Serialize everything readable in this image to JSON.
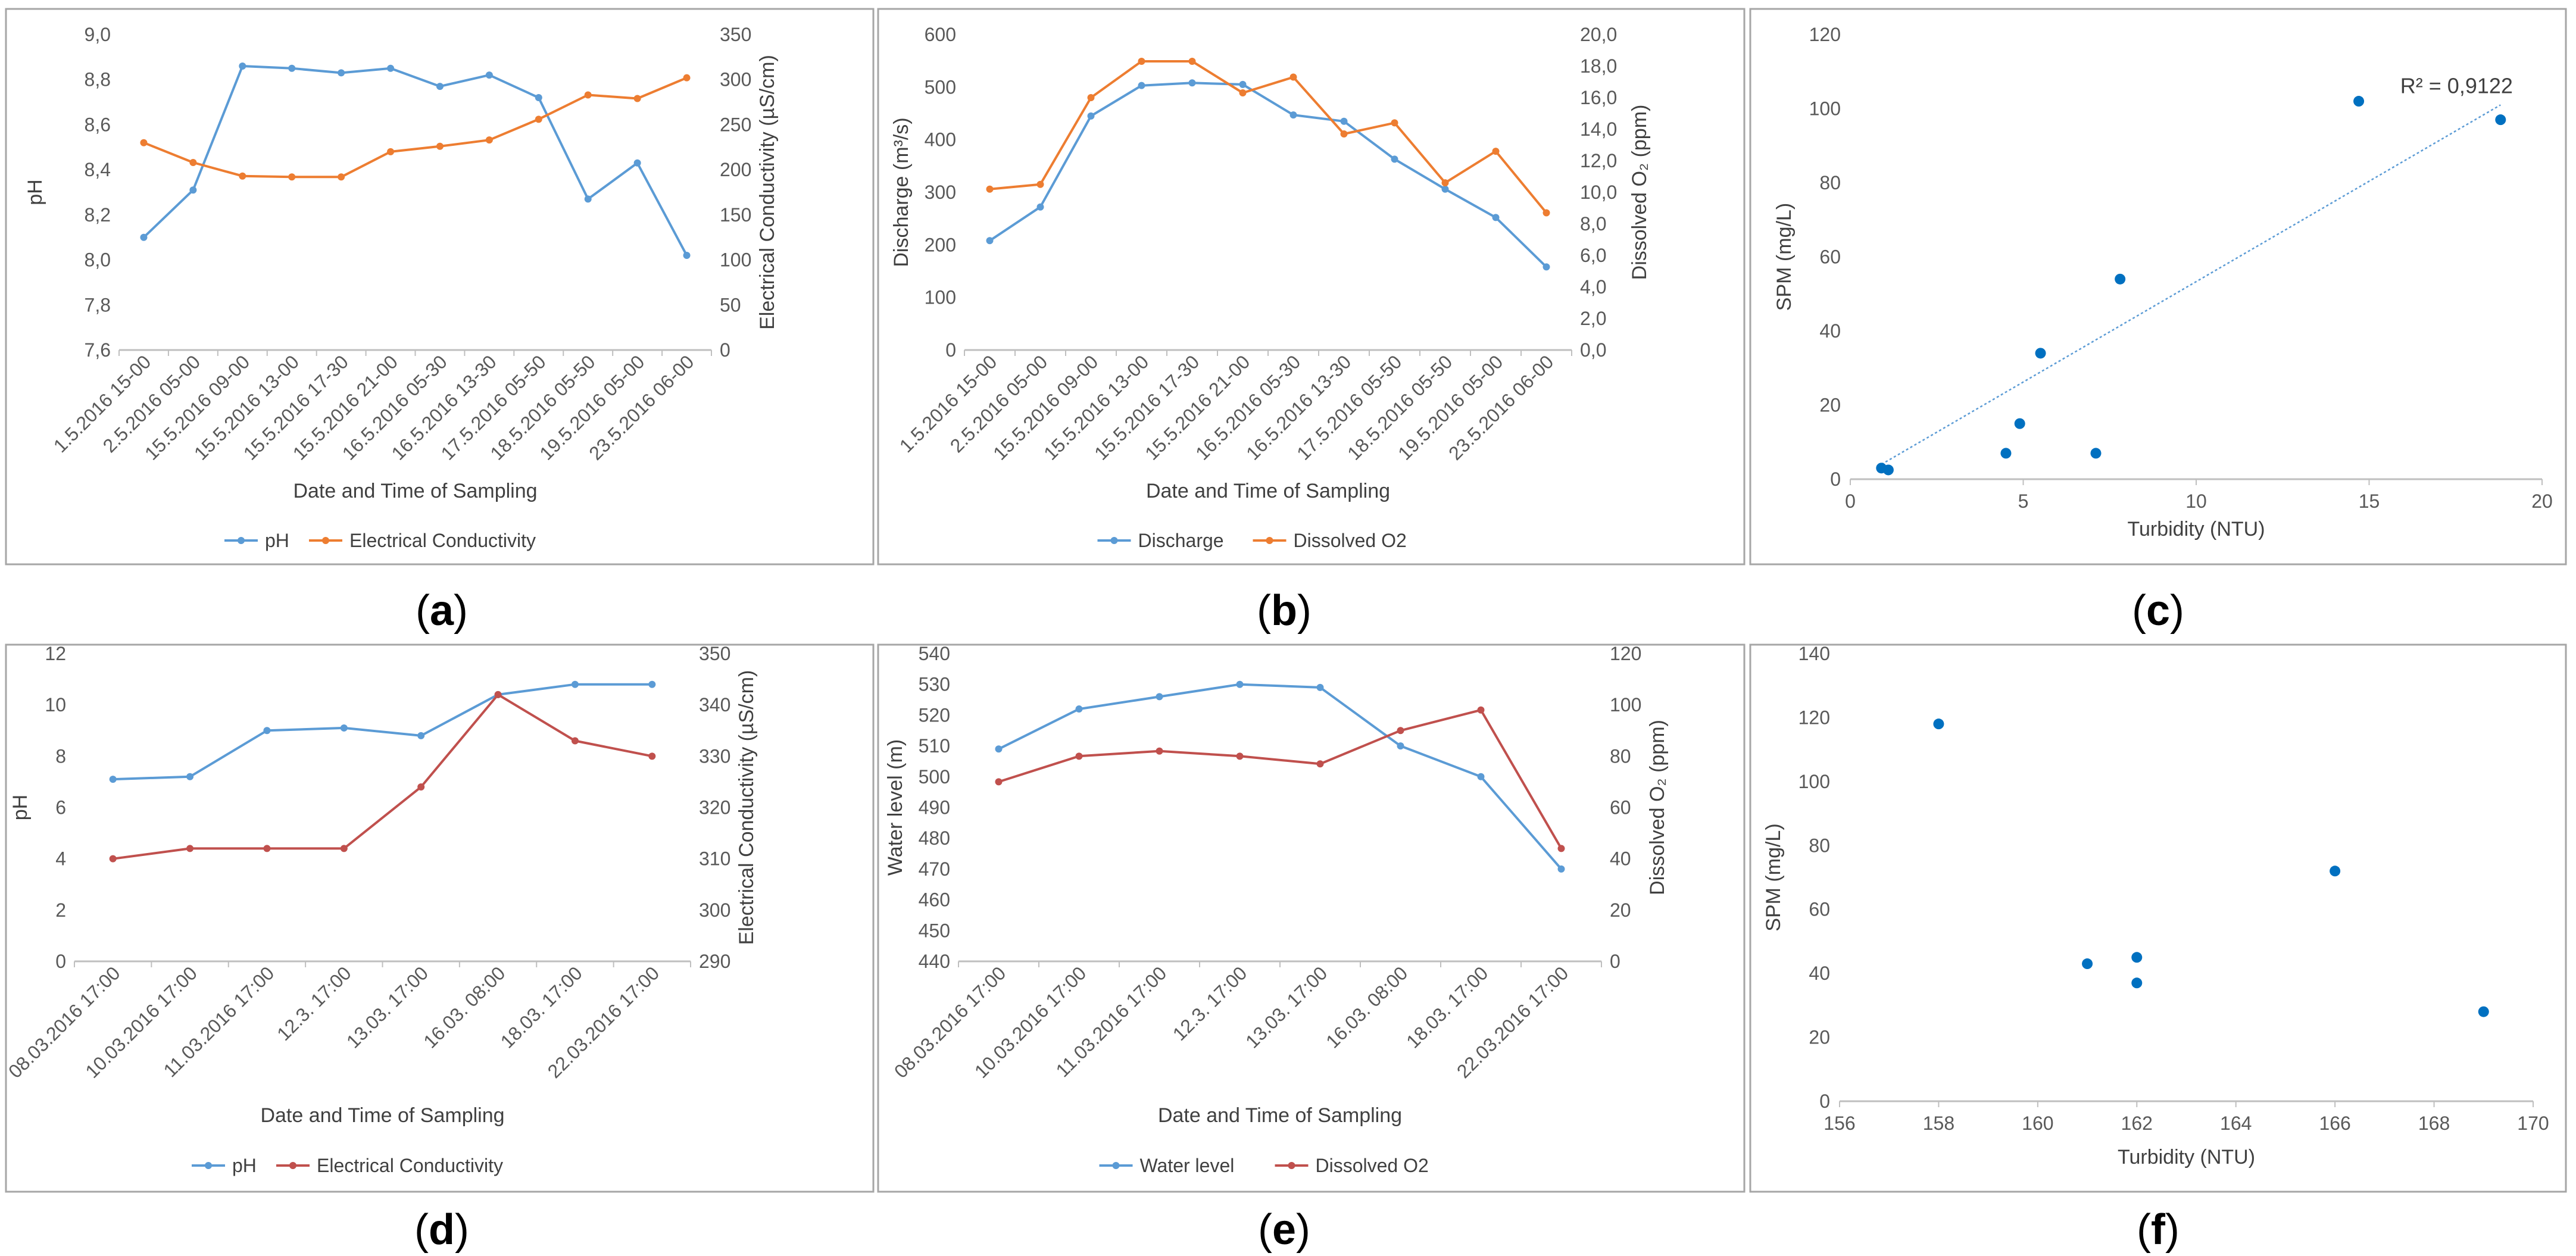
{
  "colors": {
    "blue": "#5b9bd5",
    "orange": "#ed7d31",
    "red": "#c0504d",
    "scatter": "#0070c0",
    "grid": "#d9d9d9",
    "frame": "#a6a6a6",
    "axis": "#bfbfbf",
    "text": "#595959"
  },
  "chart_data": [
    {
      "id": "a",
      "panel_label": {
        "open": "(",
        "letter": "a",
        "close": ")"
      },
      "type": "line",
      "xlabel": "Date and Time of Sampling",
      "categories": [
        "1.5.2016 15-00",
        "2.5.2016 05-00",
        "15.5.2016 09-00",
        "15.5.2016 13-00",
        "15.5.2016 17-30",
        "15.5.2016 21-00",
        "16.5.2016 05-30",
        "16.5.2016 13-30",
        "17.5.2016 05-50",
        "18.5.2016 05-50",
        "19.5.2016 05-00",
        "23.5.2016 06-00"
      ],
      "y_left": {
        "label": "pH",
        "min": 7.6,
        "max": 9.0,
        "ticks": [
          "7,6",
          "7,8",
          "8,0",
          "8,2",
          "8,4",
          "8,6",
          "8,8",
          "9,0"
        ]
      },
      "y_right": {
        "label": "Electrical Conductivity (µS/cm)",
        "min": 0,
        "max": 350,
        "ticks": [
          "0",
          "50",
          "100",
          "150",
          "200",
          "250",
          "300",
          "350"
        ]
      },
      "series": [
        {
          "name": "pH",
          "axis": "left",
          "color": "#5b9bd5",
          "values": [
            8.1,
            8.31,
            8.86,
            8.85,
            8.83,
            8.85,
            8.77,
            8.82,
            8.72,
            8.27,
            8.43,
            8.02
          ]
        },
        {
          "name": "Electrical Conductivity",
          "axis": "right",
          "color": "#ed7d31",
          "values": [
            230,
            208,
            193,
            192,
            192,
            220,
            226,
            233,
            256,
            283,
            279,
            302
          ]
        }
      ]
    },
    {
      "id": "b",
      "panel_label": {
        "open": "(",
        "letter": "b",
        "close": ")"
      },
      "type": "line",
      "xlabel": "Date and Time of Sampling",
      "categories": [
        "1.5.2016 15-00",
        "2.5.2016 05-00",
        "15.5.2016 09-00",
        "15.5.2016 13-00",
        "15.5.2016 17-30",
        "15.5.2016 21-00",
        "16.5.2016 05-30",
        "16.5.2016 13-30",
        "17.5.2016 05-50",
        "18.5.2016 05-50",
        "19.5.2016 05-00",
        "23.5.2016 06-00"
      ],
      "y_left": {
        "label": "Discharge (m³/s)",
        "min": 0,
        "max": 600,
        "ticks": [
          "0",
          "100",
          "200",
          "300",
          "400",
          "500",
          "600"
        ]
      },
      "y_right": {
        "label": "Dissolved O₂ (ppm)",
        "min": 0,
        "max": 20,
        "ticks": [
          "0,0",
          "2,0",
          "4,0",
          "6,0",
          "8,0",
          "10,0",
          "12,0",
          "14,0",
          "16,0",
          "18,0",
          "20,0"
        ]
      },
      "series": [
        {
          "name": "Discharge",
          "axis": "left",
          "color": "#5b9bd5",
          "values": [
            208,
            272,
            445,
            503,
            508,
            505,
            447,
            435,
            363,
            306,
            252,
            158
          ]
        },
        {
          "name": "Dissolved O2",
          "axis": "right",
          "color": "#ed7d31",
          "values": [
            10.2,
            10.5,
            16.0,
            18.3,
            18.3,
            16.3,
            17.3,
            13.7,
            14.4,
            10.6,
            12.6,
            8.7
          ]
        }
      ]
    },
    {
      "id": "c",
      "panel_label": {
        "open": "(",
        "letter": "c",
        "close": ")"
      },
      "type": "scatter",
      "xlabel": "Turbidity (NTU)",
      "ylabel": "SPM (mg/L)",
      "xlim": [
        0,
        20
      ],
      "ylim": [
        0,
        120
      ],
      "x_ticks": [
        "0",
        "5",
        "10",
        "15",
        "20"
      ],
      "y_ticks": [
        "0",
        "20",
        "40",
        "60",
        "80",
        "100",
        "120"
      ],
      "x": [
        0.9,
        1.1,
        4.5,
        4.9,
        5.5,
        7.1,
        7.8,
        14.7,
        18.8
      ],
      "y": [
        3,
        2.5,
        7,
        15,
        34,
        7,
        54,
        102,
        97
      ],
      "trendline": {
        "x": [
          0.9,
          18.8
        ],
        "y": [
          4,
          101
        ]
      },
      "annotation": "R² = 0,9122"
    },
    {
      "id": "d",
      "panel_label": {
        "open": "(",
        "letter": "d",
        "close": ")"
      },
      "type": "line",
      "xlabel": "Date and Time of Sampling",
      "categories": [
        "08.03.2016 17:00",
        "10.03.2016 17:00",
        "11.03.2016 17:00",
        "12.3. 17:00",
        "13.03. 17:00",
        "16.03. 08:00",
        "18.03. 17:00",
        "22.03.2016 17:00"
      ],
      "y_left": {
        "label": "pH",
        "min": 0,
        "max": 12,
        "ticks": [
          "0",
          "2",
          "4",
          "6",
          "8",
          "10",
          "12"
        ]
      },
      "y_right": {
        "label": "Electrical Conductivity (µS/cm)",
        "min": 290,
        "max": 350,
        "ticks": [
          "290",
          "300",
          "310",
          "320",
          "330",
          "340",
          "350"
        ]
      },
      "series": [
        {
          "name": "pH",
          "axis": "left",
          "color": "#5b9bd5",
          "values": [
            7.1,
            7.2,
            9.0,
            9.1,
            8.8,
            10.4,
            10.8,
            10.8
          ]
        },
        {
          "name": "Electrical Conductivity",
          "axis": "right",
          "color": "#c0504d",
          "values": [
            310,
            312,
            312,
            312,
            324,
            342,
            333,
            330
          ]
        }
      ]
    },
    {
      "id": "e",
      "panel_label": {
        "open": "(",
        "letter": "e",
        "close": ")"
      },
      "type": "line",
      "xlabel": "Date and Time of Sampling",
      "categories": [
        "08.03.2016 17:00",
        "10.03.2016 17:00",
        "11.03.2016 17:00",
        "12.3. 17:00",
        "13.03. 17:00",
        "16.03. 08:00",
        "18.03. 17:00",
        "22.03.2016 17:00"
      ],
      "y_left": {
        "label": "Water level (m)",
        "min": 440,
        "max": 540,
        "ticks": [
          "440",
          "450",
          "460",
          "470",
          "480",
          "490",
          "500",
          "510",
          "520",
          "530",
          "540"
        ]
      },
      "y_right": {
        "label": "Dissolved O₂ (ppm)",
        "min": 0,
        "max": 120,
        "ticks": [
          "0",
          "20",
          "40",
          "60",
          "80",
          "100",
          "120"
        ]
      },
      "series": [
        {
          "name": "Water level",
          "axis": "left",
          "color": "#5b9bd5",
          "values": [
            509,
            522,
            526,
            530,
            529,
            510,
            500,
            470
          ]
        },
        {
          "name": "Dissolved O2",
          "axis": "right",
          "color": "#c0504d",
          "values": [
            70,
            80,
            82,
            80,
            77,
            90,
            98,
            44
          ]
        }
      ]
    },
    {
      "id": "f",
      "panel_label": {
        "open": "(",
        "letter": "f",
        "close": ")"
      },
      "type": "scatter",
      "xlabel": "Turbidity (NTU)",
      "ylabel": "SPM (mg/L)",
      "xlim": [
        156,
        170
      ],
      "ylim": [
        0,
        140
      ],
      "x_ticks": [
        "156",
        "158",
        "160",
        "162",
        "164",
        "166",
        "168",
        "170"
      ],
      "y_ticks": [
        "0",
        "20",
        "40",
        "60",
        "80",
        "100",
        "120",
        "140"
      ],
      "x": [
        158,
        161,
        162,
        162,
        166,
        169
      ],
      "y": [
        118,
        43,
        45,
        37,
        72,
        28
      ]
    }
  ]
}
